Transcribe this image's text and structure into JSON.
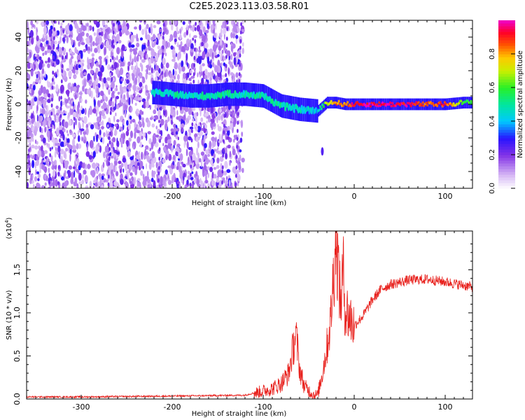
{
  "title": "C2E5.2023.113.03.58.R01",
  "colors": {
    "spectrogram_low": "#7b2fe0",
    "snr_line": "#e8201c",
    "axis": "#000000"
  },
  "colorbar": {
    "label": "Normalized spectral amplitude",
    "ticks": [
      "0.0",
      "0.2",
      "0.4",
      "0.6",
      "0.8"
    ],
    "range": [
      0,
      1
    ],
    "colormap": "rainbow (white-violet-blue-cyan-green-yellow-red-magenta)"
  },
  "chart_data": [
    {
      "type": "heatmap",
      "title": "",
      "xlabel": "Height of straight line (km)",
      "ylabel": "Frequency (Hz)",
      "xlim": [
        -360,
        130
      ],
      "ylim": [
        -50,
        50
      ],
      "xticks": [
        "-300",
        "-200",
        "-100",
        "0",
        "100"
      ],
      "yticks": [
        "-40",
        "-20",
        "0",
        "20",
        "40"
      ],
      "description_regions": [
        {
          "x_range": [
            -360,
            -125
          ],
          "pattern": "broadband noise, low amplitude (0.0-0.3)"
        },
        {
          "x_range": [
            -220,
            -40
          ],
          "pattern": "band near 0-8 Hz drifting down, amplitude 0.3-0.6"
        },
        {
          "x_range": [
            -40,
            130
          ],
          "pattern": "narrow band at 0 Hz, amplitude 0.7-1.0 near 0-100 km"
        }
      ],
      "ridge": {
        "x": [
          -220,
          -200,
          -180,
          -160,
          -140,
          -120,
          -100,
          -80,
          -60,
          -40,
          -30,
          -20,
          -10,
          0,
          20,
          40,
          60,
          80,
          100,
          120
        ],
        "freq": [
          7,
          6,
          5,
          5,
          6,
          6,
          5,
          -1,
          -3,
          -4,
          1,
          1,
          0,
          0,
          0,
          0,
          0,
          0,
          0,
          1
        ],
        "amp": [
          0.45,
          0.5,
          0.45,
          0.5,
          0.5,
          0.45,
          0.5,
          0.5,
          0.45,
          0.4,
          0.7,
          0.85,
          0.8,
          0.95,
          0.95,
          0.95,
          0.95,
          0.85,
          0.9,
          0.6
        ]
      }
    },
    {
      "type": "line",
      "title": "",
      "xlabel": "Height of straight line (km)",
      "ylabel": "SNR (10 * v/v)",
      "y_multiplier_label": "(x10",
      "y_multiplier_exp": "4",
      "xlim": [
        -360,
        130
      ],
      "ylim": [
        0,
        1.95
      ],
      "xticks": [
        "-300",
        "-200",
        "-100",
        "0",
        "100"
      ],
      "yticks": [
        "0.0",
        "0.5",
        "1.0",
        "1.5"
      ],
      "series": [
        {
          "x": [
            -360,
            -300,
            -200,
            -120,
            -105,
            -90,
            -80,
            -72,
            -67,
            -64,
            -60,
            -55,
            -50,
            -45,
            -40,
            -35,
            -30,
            -26,
            -22,
            -20,
            -18,
            -15,
            -12,
            -10,
            -5,
            0,
            10,
            20,
            30,
            40,
            60,
            80,
            100,
            120,
            130
          ],
          "values": [
            0.02,
            0.02,
            0.03,
            0.04,
            0.08,
            0.12,
            0.18,
            0.3,
            0.6,
            0.75,
            0.35,
            0.15,
            0.1,
            0.05,
            0.05,
            0.3,
            0.6,
            0.9,
            1.55,
            1.93,
            1.6,
            1.1,
            1.5,
            1.05,
            0.95,
            0.85,
            0.97,
            1.15,
            1.28,
            1.33,
            1.38,
            1.39,
            1.36,
            1.32,
            1.3
          ]
        }
      ]
    }
  ]
}
